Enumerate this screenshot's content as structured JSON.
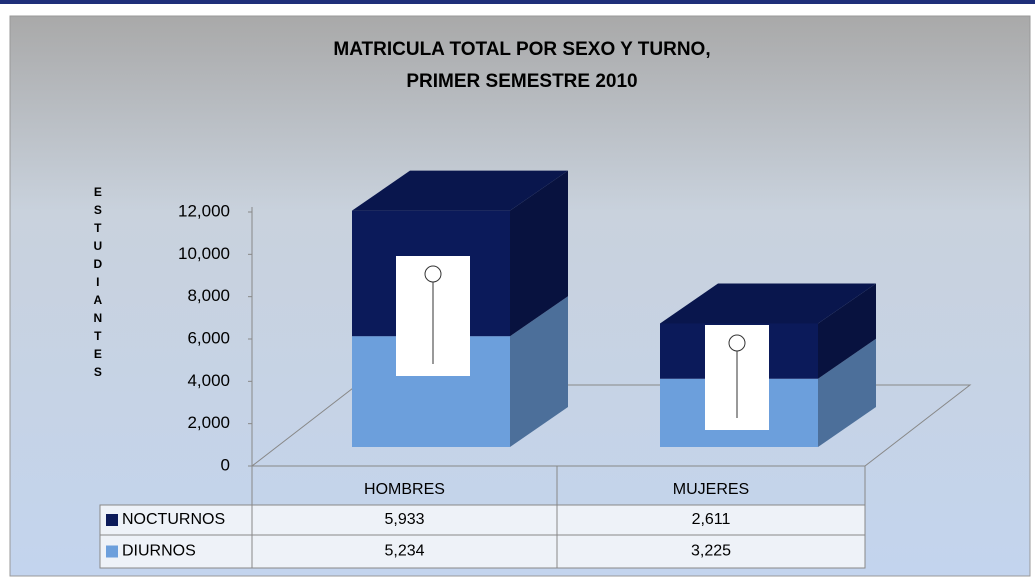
{
  "chart_data": {
    "type": "bar3d",
    "title": [
      "MATRICULA TOTAL POR SEXO Y TURNO,",
      "PRIMER SEMESTRE 2010"
    ],
    "y_label": "ESTUDIANTES",
    "categories": [
      "HOMBRES",
      "MUJERES"
    ],
    "stacked": true,
    "series": [
      {
        "name": "DIURNOS",
        "color": "#6c9fdc",
        "values": [
          5234,
          3225
        ],
        "value_labels": [
          "5,234",
          "3,225"
        ]
      },
      {
        "name": "NOCTURNOS",
        "color": "#0b1a5a",
        "values": [
          5933,
          2611
        ],
        "value_labels": [
          "5,933",
          "2,611"
        ]
      }
    ],
    "ylim": [
      0,
      12000
    ],
    "yticks": [
      0,
      {
        "value": 2000,
        "label": "2,000"
      },
      {
        "value": 4000,
        "label": "4,000"
      },
      {
        "value": 6000,
        "label": "6,000"
      },
      {
        "value": 8000,
        "label": "8,000"
      },
      {
        "value": 10000,
        "label": "10,000"
      },
      {
        "value": 12000,
        "label": "12,000"
      }
    ]
  }
}
